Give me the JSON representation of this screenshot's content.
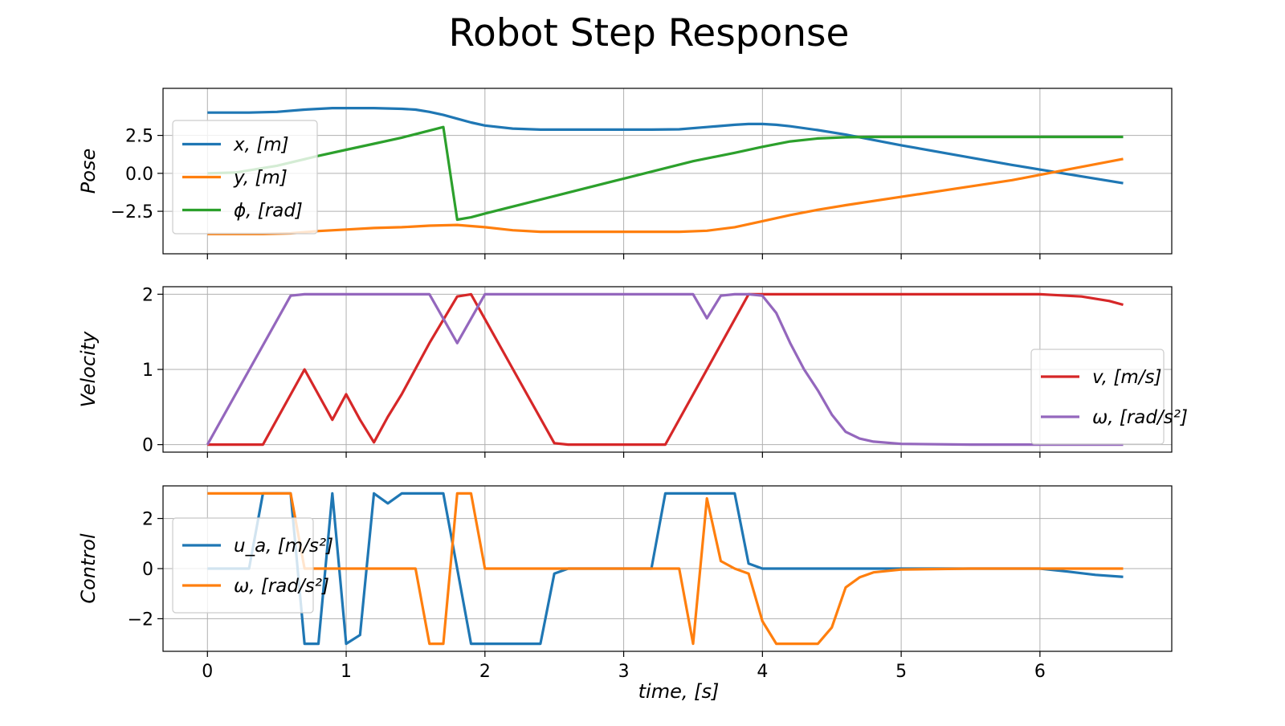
{
  "chart_data": {
    "title": "Robot Step Response",
    "xlabel": "time, [s]",
    "xlim": [
      -0.32,
      6.95
    ],
    "xticks": [
      0,
      1,
      2,
      3,
      4,
      5,
      6
    ],
    "grid": true,
    "subplots": [
      {
        "type": "line",
        "ylabel": "Pose",
        "ylim": [
          -5.3,
          5.6
        ],
        "yticks": [
          2.5,
          0.0,
          -2.5
        ],
        "ytick_labels": [
          "2.5",
          "0.0",
          "−2.5"
        ],
        "legend_position": "upper-left",
        "series": [
          {
            "name": "x, [m]",
            "color": "#1f77b4",
            "x": [
              0,
              0.3,
              0.5,
              0.7,
              0.9,
              1.0,
              1.2,
              1.4,
              1.5,
              1.6,
              1.7,
              1.8,
              1.9,
              2.0,
              2.2,
              2.4,
              2.6,
              2.8,
              3.0,
              3.2,
              3.4,
              3.6,
              3.8,
              3.9,
              4.0,
              4.1,
              4.2,
              4.4,
              4.6,
              4.8,
              5.0,
              5.4,
              5.8,
              6.2,
              6.6
            ],
            "values": [
              4.0,
              4.0,
              4.05,
              4.2,
              4.3,
              4.3,
              4.3,
              4.25,
              4.2,
              4.05,
              3.85,
              3.6,
              3.35,
              3.15,
              2.95,
              2.88,
              2.88,
              2.88,
              2.88,
              2.88,
              2.9,
              3.05,
              3.2,
              3.25,
              3.25,
              3.2,
              3.1,
              2.85,
              2.55,
              2.2,
              1.85,
              1.2,
              0.55,
              -0.05,
              -0.65
            ]
          },
          {
            "name": "y, [m]",
            "color": "#ff7f0e",
            "x": [
              0,
              0.4,
              0.6,
              0.8,
              1.0,
              1.2,
              1.4,
              1.6,
              1.8,
              2.0,
              2.2,
              2.4,
              2.6,
              2.8,
              3.0,
              3.2,
              3.4,
              3.6,
              3.8,
              4.0,
              4.2,
              4.4,
              4.6,
              5.0,
              5.4,
              5.8,
              6.2,
              6.6
            ],
            "values": [
              -4.0,
              -4.0,
              -3.95,
              -3.8,
              -3.7,
              -3.6,
              -3.55,
              -3.45,
              -3.4,
              -3.55,
              -3.75,
              -3.85,
              -3.85,
              -3.85,
              -3.85,
              -3.85,
              -3.85,
              -3.78,
              -3.55,
              -3.15,
              -2.75,
              -2.4,
              -2.1,
              -1.55,
              -1.0,
              -0.45,
              0.25,
              0.95
            ]
          },
          {
            "name": "ϕ, [rad]",
            "color": "#2ca02c",
            "x": [
              0,
              0.2,
              0.5,
              0.8,
              1.0,
              1.2,
              1.4,
              1.7,
              1.8,
              1.9,
              2.0,
              2.5,
              3.0,
              3.5,
              3.8,
              4.0,
              4.2,
              4.4,
              4.6,
              4.8,
              5.0,
              5.5,
              6.0,
              6.6
            ],
            "values": [
              0.0,
              0.05,
              0.5,
              1.15,
              1.55,
              1.95,
              2.35,
              3.05,
              -3.05,
              -2.9,
              -2.65,
              -1.5,
              -0.35,
              0.8,
              1.35,
              1.75,
              2.1,
              2.3,
              2.38,
              2.4,
              2.4,
              2.4,
              2.4,
              2.4
            ]
          }
        ]
      },
      {
        "type": "line",
        "ylabel": "Velocity",
        "ylim": [
          -0.1,
          2.1
        ],
        "yticks": [
          2,
          1,
          0
        ],
        "ytick_labels": [
          "2",
          "1",
          "0"
        ],
        "legend_position": "lower-right",
        "series": [
          {
            "name": "v, [m/s]",
            "color": "#d62728",
            "x": [
              0,
              0.4,
              0.7,
              0.9,
              1.0,
              1.1,
              1.2,
              1.3,
              1.4,
              1.6,
              1.8,
              1.9,
              2.0,
              2.5,
              2.6,
              2.7,
              3.3,
              3.9,
              4.0,
              4.5,
              5.0,
              5.5,
              6.0,
              6.1,
              6.3,
              6.5,
              6.6
            ],
            "values": [
              0.0,
              0.0,
              1.0,
              0.33,
              0.67,
              0.33,
              0.03,
              0.37,
              0.67,
              1.35,
              1.97,
              2.0,
              1.67,
              0.02,
              0.0,
              0.0,
              0.0,
              2.0,
              2.0,
              2.0,
              2.0,
              2.0,
              2.0,
              1.99,
              1.97,
              1.91,
              1.86
            ]
          },
          {
            "name": "ω, [rad/s²]",
            "color": "#9467bd",
            "x": [
              0,
              0.6,
              0.7,
              1.0,
              1.5,
              1.6,
              1.8,
              2.0,
              2.5,
              3.0,
              3.5,
              3.6,
              3.7,
              3.8,
              3.9,
              4.0,
              4.1,
              4.2,
              4.3,
              4.4,
              4.5,
              4.6,
              4.7,
              4.8,
              5.0,
              5.5,
              6.0,
              6.6
            ],
            "values": [
              0.0,
              1.98,
              2.0,
              2.0,
              2.0,
              2.0,
              1.35,
              2.0,
              2.0,
              2.0,
              2.0,
              1.68,
              1.98,
              2.0,
              2.0,
              1.98,
              1.75,
              1.35,
              1.0,
              0.72,
              0.4,
              0.17,
              0.08,
              0.04,
              0.01,
              0.0,
              0.0,
              0.0
            ]
          }
        ]
      },
      {
        "type": "line",
        "ylabel": "Control",
        "ylim": [
          -3.3,
          3.3
        ],
        "yticks": [
          2,
          0,
          -2
        ],
        "ytick_labels": [
          "2",
          "0",
          "−2"
        ],
        "legend_position": "upper-left",
        "series": [
          {
            "name": "u_a, [m/s²]",
            "color": "#1f77b4",
            "x": [
              0,
              0.3,
              0.4,
              0.6,
              0.7,
              0.8,
              0.9,
              1.0,
              1.1,
              1.2,
              1.3,
              1.4,
              1.5,
              1.6,
              1.7,
              1.8,
              1.9,
              2.0,
              2.3,
              2.4,
              2.5,
              2.6,
              2.7,
              3.1,
              3.2,
              3.3,
              3.5,
              3.7,
              3.8,
              3.9,
              4.0,
              4.5,
              5.0,
              5.5,
              6.0,
              6.2,
              6.4,
              6.6
            ],
            "values": [
              0.0,
              0.0,
              3.0,
              3.0,
              -3.0,
              -3.0,
              3.0,
              -3.0,
              -2.65,
              3.0,
              2.6,
              3.0,
              3.0,
              3.0,
              3.0,
              0.0,
              -3.0,
              -3.0,
              -3.0,
              -3.0,
              -0.2,
              0.0,
              0.0,
              0.0,
              0.0,
              3.0,
              3.0,
              3.0,
              3.0,
              0.2,
              0.0,
              0.0,
              0.0,
              0.0,
              0.0,
              -0.12,
              -0.25,
              -0.33
            ]
          },
          {
            "name": "ω, [rad/s²]",
            "color": "#ff7f0e",
            "x": [
              0,
              0.5,
              0.6,
              0.7,
              0.8,
              1.0,
              1.5,
              1.6,
              1.7,
              1.8,
              1.9,
              2.0,
              2.5,
              3.0,
              3.4,
              3.5,
              3.6,
              3.7,
              3.8,
              3.9,
              4.0,
              4.1,
              4.2,
              4.4,
              4.5,
              4.6,
              4.7,
              4.8,
              5.0,
              5.5,
              6.0,
              6.6
            ],
            "values": [
              3.0,
              3.0,
              3.0,
              0.0,
              0.0,
              0.0,
              0.0,
              -3.0,
              -3.0,
              3.0,
              3.0,
              0.0,
              0.0,
              0.0,
              0.0,
              -3.0,
              2.8,
              0.3,
              0.0,
              -0.2,
              -2.1,
              -3.0,
              -3.0,
              -3.0,
              -2.35,
              -0.75,
              -0.35,
              -0.15,
              -0.04,
              0.0,
              0.0,
              0.0
            ]
          }
        ]
      }
    ]
  }
}
